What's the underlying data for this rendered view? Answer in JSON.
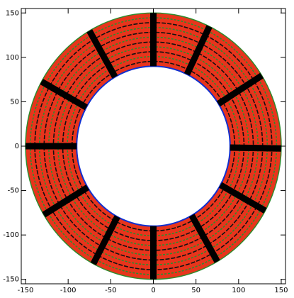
{
  "chart_data": {
    "type": "annulus",
    "inner_radius": 90,
    "outer_radius": 150,
    "spoke_angles": [
      90,
      64,
      32,
      -1,
      -29,
      -60,
      -90,
      -118,
      -149,
      180,
      151,
      120
    ],
    "fill_color": "#e8341c",
    "ring_color": "#2e8b2e",
    "spoke_color": "#000000",
    "inner_edge_color": "#1030d0",
    "xlim": [
      -155,
      155
    ],
    "ylim": [
      -155,
      155
    ],
    "xticks": [
      -150,
      -100,
      -50,
      0,
      50,
      100,
      150
    ],
    "yticks": [
      -150,
      -100,
      -50,
      0,
      50,
      100,
      150
    ]
  }
}
